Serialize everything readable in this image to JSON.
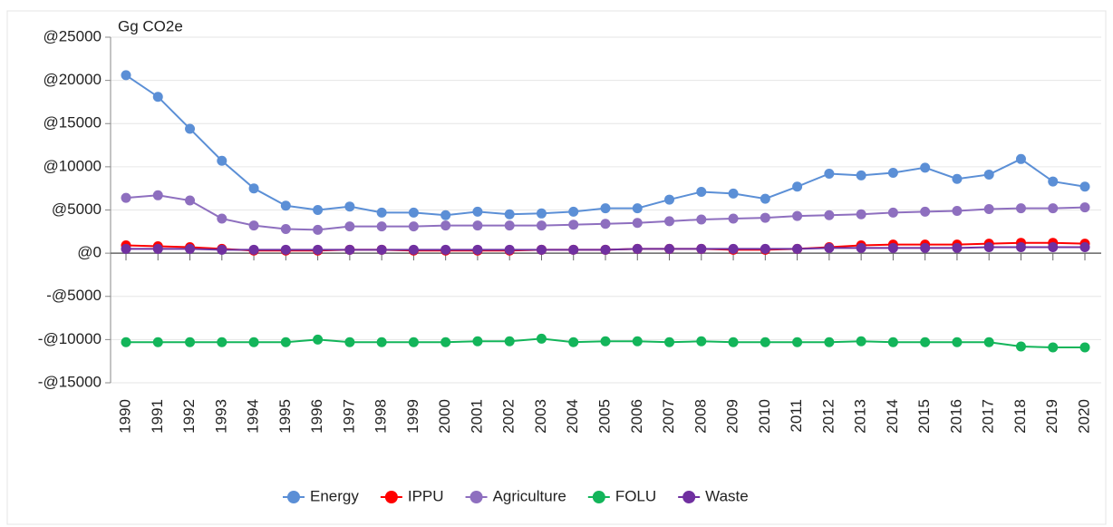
{
  "chart_data": {
    "type": "line",
    "y_label": "Gg CO2e",
    "categories": [
      "1990",
      "1991",
      "1992",
      "1993",
      "1994",
      "1995",
      "1996",
      "1997",
      "1998",
      "1999",
      "2000",
      "2001",
      "2002",
      "2003",
      "2004",
      "2005",
      "2006",
      "2007",
      "2008",
      "2009",
      "2010",
      "2011",
      "2012",
      "2013",
      "2014",
      "2015",
      "2016",
      "2017",
      "2018",
      "2019",
      "2020"
    ],
    "series": [
      {
        "name": "Energy",
        "color": "#5b8fd6",
        "values": [
          20600,
          18100,
          14400,
          10700,
          7500,
          5500,
          5000,
          5400,
          4700,
          4700,
          4400,
          4800,
          4500,
          4600,
          4800,
          5200,
          5200,
          6200,
          7100,
          6900,
          6300,
          7700,
          9200,
          9000,
          9300,
          9900,
          8600,
          9100,
          10900,
          8300,
          7700
        ]
      },
      {
        "name": "IPPU",
        "color": "#ff0000",
        "values": [
          900,
          800,
          700,
          500,
          300,
          300,
          300,
          400,
          400,
          300,
          300,
          300,
          300,
          400,
          400,
          400,
          500,
          500,
          500,
          400,
          400,
          500,
          700,
          900,
          1000,
          1000,
          1000,
          1100,
          1200,
          1200,
          1100
        ]
      },
      {
        "name": "Agriculture",
        "color": "#8e6fbf",
        "values": [
          6400,
          6700,
          6100,
          4000,
          3200,
          2800,
          2700,
          3100,
          3100,
          3100,
          3200,
          3200,
          3200,
          3200,
          3300,
          3400,
          3500,
          3700,
          3900,
          4000,
          4100,
          4300,
          4400,
          4500,
          4700,
          4800,
          4900,
          5100,
          5200,
          5200,
          5300
        ]
      },
      {
        "name": "FOLU",
        "color": "#13b55a",
        "values": [
          -10300,
          -10300,
          -10300,
          -10300,
          -10300,
          -10300,
          -10000,
          -10300,
          -10300,
          -10300,
          -10300,
          -10200,
          -10200,
          -9900,
          -10300,
          -10200,
          -10200,
          -10300,
          -10200,
          -10300,
          -10300,
          -10300,
          -10300,
          -10200,
          -10300,
          -10300,
          -10300,
          -10300,
          -10800,
          -10900,
          -10900
        ]
      },
      {
        "name": "Waste",
        "color": "#7030a0",
        "values": [
          500,
          500,
          500,
          400,
          400,
          400,
          400,
          400,
          400,
          400,
          400,
          400,
          400,
          400,
          400,
          400,
          500,
          500,
          500,
          500,
          500,
          500,
          600,
          600,
          600,
          600,
          600,
          700,
          700,
          700,
          700
        ]
      }
    ],
    "ylim": [
      -15000,
      25000
    ],
    "yticks": [
      {
        "value": -15000,
        "label": "-@15000"
      },
      {
        "value": -10000,
        "label": "-@10000"
      },
      {
        "value": -5000,
        "label": "-@5000"
      },
      {
        "value": 0,
        "label": "@0"
      },
      {
        "value": 5000,
        "label": "@5000"
      },
      {
        "value": 10000,
        "label": "@10000"
      },
      {
        "value": 15000,
        "label": "@15000"
      },
      {
        "value": 20000,
        "label": "@20000"
      },
      {
        "value": 25000,
        "label": "@25000"
      }
    ],
    "grid": true,
    "legend": "bottom"
  }
}
